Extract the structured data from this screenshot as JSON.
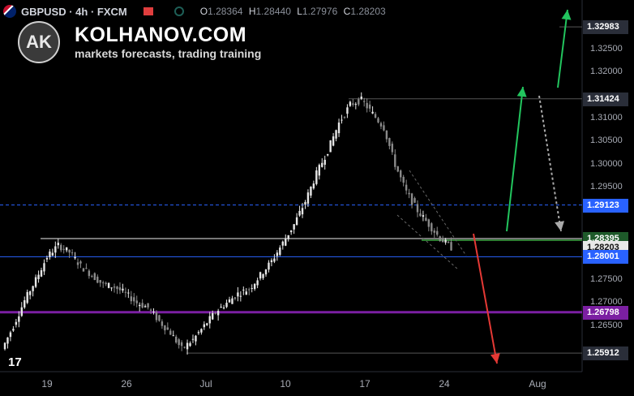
{
  "header": {
    "symbol": "GBPUSD",
    "interval": "4h",
    "exchange": "FXCM",
    "symbol_line": "GBPUSD · 4h · FXCM",
    "ohlc": [
      {
        "key": "O",
        "value": "1.28364"
      },
      {
        "key": "H",
        "value": "1.28440"
      },
      {
        "key": "L",
        "value": "1.27976"
      },
      {
        "key": "C",
        "value": "1.28203"
      }
    ]
  },
  "brand": {
    "logo_text": "AK",
    "title": "KOLHANOV.COM",
    "subtitle": "markets forecasts, trading training"
  },
  "price_axis": {
    "ticks": [
      "1.32500",
      "1.32000",
      "1.31000",
      "1.30500",
      "1.30000",
      "1.29500",
      "1.27500",
      "1.27000",
      "1.26500"
    ],
    "badges": [
      {
        "value": "1.32983",
        "color": "#2a2e39"
      },
      {
        "value": "1.31424",
        "color": "#2a2e39"
      },
      {
        "value": "1.29123",
        "color": "#2962ff"
      },
      {
        "value": "1.28395",
        "color": "#1e5a2a"
      },
      {
        "value": "1.28203",
        "color": "#e8e8e8"
      },
      {
        "value": "1.28001",
        "color": "#2962ff"
      },
      {
        "value": "1.26798",
        "color": "#7b1fa2"
      },
      {
        "value": "1.25912",
        "color": "#2a2e39"
      }
    ]
  },
  "time_axis": {
    "labels": [
      "19",
      "26",
      "Jul",
      "10",
      "17",
      "24",
      "Aug"
    ]
  },
  "chart_data": {
    "type": "candlestick",
    "title": "GBPUSD · 4h · FXCM",
    "series_close_path": [
      1.26,
      1.265,
      1.2705,
      1.275,
      1.28,
      1.2825,
      1.281,
      1.278,
      1.276,
      1.274,
      1.2735,
      1.272,
      1.27,
      1.269,
      1.266,
      1.2635,
      1.26,
      1.262,
      1.265,
      1.268,
      1.27,
      1.272,
      1.273,
      1.276,
      1.279,
      1.283,
      1.287,
      1.292,
      1.298,
      1.303,
      1.309,
      1.313,
      1.314,
      1.311,
      1.308,
      1.3,
      1.294,
      1.29,
      1.287,
      1.284,
      1.282
    ],
    "horizontal_levels": [
      1.32983,
      1.31424,
      1.29123,
      1.28395,
      1.28001,
      1.26798,
      1.25912
    ],
    "last_price": 1.28203,
    "ylim": [
      1.2565,
      1.3325
    ],
    "xlabels": [
      "19",
      "26",
      "Jul",
      "10",
      "17",
      "24",
      "Aug"
    ]
  }
}
